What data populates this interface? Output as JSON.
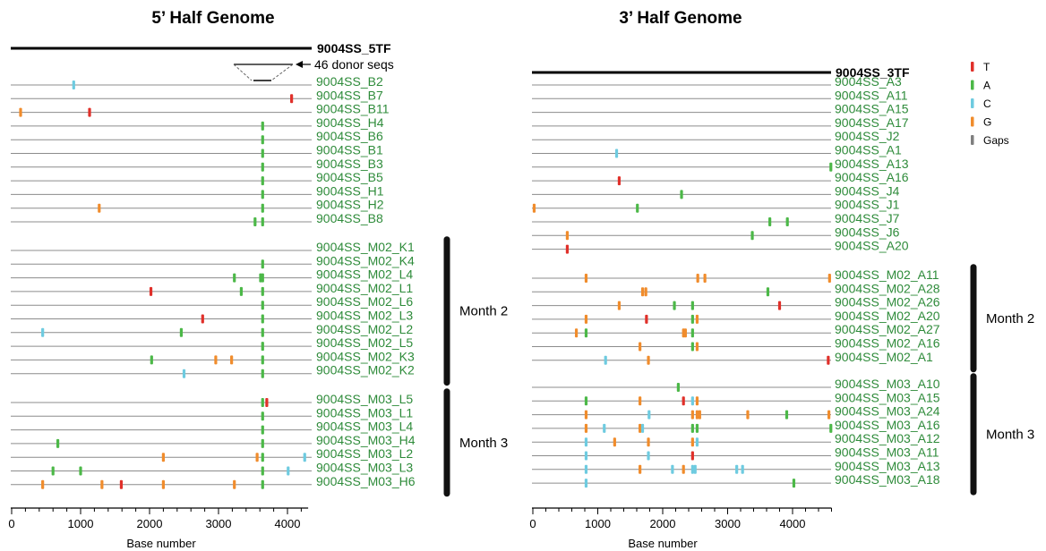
{
  "chart_data": [
    {
      "type": "scatter",
      "title": "5’ Half Genome",
      "xlabel": "Base number",
      "xlim": [
        0,
        4300
      ],
      "xticks": [
        0,
        1000,
        2000,
        3000,
        4000
      ],
      "reference": "9004SS_5TF",
      "annotation": "46 donor seqs",
      "groups": [
        {
          "label": "",
          "rows": [
            {
              "name": "9004SS_B2",
              "marks": [
                {
                  "x": 900,
                  "base": "C"
                }
              ]
            },
            {
              "name": "9004SS_B7",
              "marks": [
                {
                  "x": 4060,
                  "base": "T"
                }
              ]
            },
            {
              "name": "9004SS_B11",
              "marks": [
                {
                  "x": 130,
                  "base": "G"
                },
                {
                  "x": 1130,
                  "base": "T"
                }
              ]
            },
            {
              "name": "9004SS_H4",
              "marks": [
                {
                  "x": 3640,
                  "base": "A"
                }
              ]
            },
            {
              "name": "9004SS_B6",
              "marks": [
                {
                  "x": 3640,
                  "base": "A"
                }
              ]
            },
            {
              "name": "9004SS_B1",
              "marks": [
                {
                  "x": 3640,
                  "base": "A"
                }
              ]
            },
            {
              "name": "9004SS_B3",
              "marks": [
                {
                  "x": 3640,
                  "base": "A"
                }
              ]
            },
            {
              "name": "9004SS_B5",
              "marks": [
                {
                  "x": 3640,
                  "base": "A"
                }
              ]
            },
            {
              "name": "9004SS_H1",
              "marks": [
                {
                  "x": 3640,
                  "base": "A"
                }
              ]
            },
            {
              "name": "9004SS_H2",
              "marks": [
                {
                  "x": 1270,
                  "base": "G"
                },
                {
                  "x": 3640,
                  "base": "A"
                }
              ]
            },
            {
              "name": "9004SS_B8",
              "marks": [
                {
                  "x": 3530,
                  "base": "A"
                },
                {
                  "x": 3640,
                  "base": "A"
                }
              ]
            }
          ]
        },
        {
          "label": "Month 2",
          "rows": [
            {
              "name": "9004SS_M02_K1",
              "marks": []
            },
            {
              "name": "9004SS_M02_K4",
              "marks": [
                {
                  "x": 3640,
                  "base": "A"
                }
              ]
            },
            {
              "name": "9004SS_M02_L4",
              "marks": [
                {
                  "x": 3230,
                  "base": "A"
                },
                {
                  "x": 3610,
                  "base": "A"
                },
                {
                  "x": 3640,
                  "base": "A"
                }
              ]
            },
            {
              "name": "9004SS_M02_L1",
              "marks": [
                {
                  "x": 2020,
                  "base": "T"
                },
                {
                  "x": 3330,
                  "base": "A"
                },
                {
                  "x": 3640,
                  "base": "A"
                }
              ]
            },
            {
              "name": "9004SS_M02_L6",
              "marks": [
                {
                  "x": 3640,
                  "base": "A"
                }
              ]
            },
            {
              "name": "9004SS_M02_L3",
              "marks": [
                {
                  "x": 2770,
                  "base": "T"
                },
                {
                  "x": 3640,
                  "base": "A"
                }
              ]
            },
            {
              "name": "9004SS_M02_L2",
              "marks": [
                {
                  "x": 450,
                  "base": "C"
                },
                {
                  "x": 2460,
                  "base": "A"
                },
                {
                  "x": 3640,
                  "base": "A"
                }
              ]
            },
            {
              "name": "9004SS_M02_L5",
              "marks": [
                {
                  "x": 3640,
                  "base": "A"
                }
              ]
            },
            {
              "name": "9004SS_M02_K3",
              "marks": [
                {
                  "x": 2030,
                  "base": "A"
                },
                {
                  "x": 2960,
                  "base": "G"
                },
                {
                  "x": 3190,
                  "base": "G"
                },
                {
                  "x": 3640,
                  "base": "A"
                }
              ]
            },
            {
              "name": "9004SS_M02_K2",
              "marks": [
                {
                  "x": 2500,
                  "base": "C"
                },
                {
                  "x": 3640,
                  "base": "A"
                }
              ]
            }
          ]
        },
        {
          "label": "Month 3",
          "rows": [
            {
              "name": "9004SS_M03_L5",
              "marks": [
                {
                  "x": 3640,
                  "base": "A"
                },
                {
                  "x": 3700,
                  "base": "T"
                }
              ]
            },
            {
              "name": "9004SS_M03_L1",
              "marks": [
                {
                  "x": 3640,
                  "base": "A"
                }
              ]
            },
            {
              "name": "9004SS_M03_L4",
              "marks": [
                {
                  "x": 3640,
                  "base": "A"
                }
              ]
            },
            {
              "name": "9004SS_M03_H4",
              "marks": [
                {
                  "x": 670,
                  "base": "A"
                },
                {
                  "x": 3640,
                  "base": "A"
                }
              ]
            },
            {
              "name": "9004SS_M03_L2",
              "marks": [
                {
                  "x": 2200,
                  "base": "G"
                },
                {
                  "x": 3560,
                  "base": "G"
                },
                {
                  "x": 3640,
                  "base": "A"
                },
                {
                  "x": 4250,
                  "base": "C"
                }
              ]
            },
            {
              "name": "9004SS_M03_L3",
              "marks": [
                {
                  "x": 600,
                  "base": "A"
                },
                {
                  "x": 1000,
                  "base": "A"
                },
                {
                  "x": 3640,
                  "base": "A"
                },
                {
                  "x": 4010,
                  "base": "C"
                }
              ]
            },
            {
              "name": "9004SS_M03_H6",
              "marks": [
                {
                  "x": 450,
                  "base": "G"
                },
                {
                  "x": 1310,
                  "base": "G"
                },
                {
                  "x": 1590,
                  "base": "T"
                },
                {
                  "x": 2200,
                  "base": "G"
                },
                {
                  "x": 3230,
                  "base": "G"
                },
                {
                  "x": 3640,
                  "base": "A"
                }
              ]
            }
          ]
        }
      ]
    },
    {
      "type": "scatter",
      "title": "3’ Half Genome",
      "xlabel": "Base number",
      "xlim": [
        0,
        4600
      ],
      "xticks": [
        0,
        1000,
        2000,
        3000,
        4000
      ],
      "reference": "9004SS_3TF",
      "groups": [
        {
          "label": "",
          "rows": [
            {
              "name": "9004SS_A3",
              "marks": []
            },
            {
              "name": "9004SS_A11",
              "marks": []
            },
            {
              "name": "9004SS_A15",
              "marks": []
            },
            {
              "name": "9004SS_A17",
              "marks": []
            },
            {
              "name": "9004SS_J2",
              "marks": []
            },
            {
              "name": "9004SS_A1",
              "marks": [
                {
                  "x": 1290,
                  "base": "C"
                }
              ]
            },
            {
              "name": "9004SS_A13",
              "marks": [
                {
                  "x": 4590,
                  "base": "A"
                }
              ]
            },
            {
              "name": "9004SS_A16",
              "marks": [
                {
                  "x": 1330,
                  "base": "T"
                }
              ]
            },
            {
              "name": "9004SS_J4",
              "marks": [
                {
                  "x": 2290,
                  "base": "A"
                }
              ]
            },
            {
              "name": "9004SS_J1",
              "marks": [
                {
                  "x": 20,
                  "base": "G"
                },
                {
                  "x": 1610,
                  "base": "A"
                }
              ]
            },
            {
              "name": "9004SS_J7",
              "marks": [
                {
                  "x": 3650,
                  "base": "A"
                },
                {
                  "x": 3920,
                  "base": "A"
                }
              ]
            },
            {
              "name": "9004SS_J6",
              "marks": [
                {
                  "x": 530,
                  "base": "G"
                },
                {
                  "x": 3380,
                  "base": "A"
                }
              ]
            },
            {
              "name": "9004SS_A20",
              "marks": [
                {
                  "x": 530,
                  "base": "T"
                }
              ]
            }
          ]
        },
        {
          "label": "Month 2",
          "rows": [
            {
              "name": "9004SS_M02_A11",
              "marks": [
                {
                  "x": 820,
                  "base": "G"
                },
                {
                  "x": 2540,
                  "base": "G"
                },
                {
                  "x": 2650,
                  "base": "G"
                },
                {
                  "x": 4570,
                  "base": "G"
                }
              ]
            },
            {
              "name": "9004SS_M02_A28",
              "marks": [
                {
                  "x": 1690,
                  "base": "G"
                },
                {
                  "x": 1740,
                  "base": "G"
                },
                {
                  "x": 3620,
                  "base": "A"
                }
              ]
            },
            {
              "name": "9004SS_M02_A26",
              "marks": [
                {
                  "x": 1330,
                  "base": "G"
                },
                {
                  "x": 2180,
                  "base": "A"
                },
                {
                  "x": 2460,
                  "base": "A"
                },
                {
                  "x": 3800,
                  "base": "T"
                }
              ]
            },
            {
              "name": "9004SS_M02_A20",
              "marks": [
                {
                  "x": 820,
                  "base": "G"
                },
                {
                  "x": 1750,
                  "base": "T"
                },
                {
                  "x": 2460,
                  "base": "A"
                },
                {
                  "x": 2530,
                  "base": "G"
                }
              ]
            },
            {
              "name": "9004SS_M02_A27",
              "marks": [
                {
                  "x": 670,
                  "base": "G"
                },
                {
                  "x": 820,
                  "base": "A"
                },
                {
                  "x": 2320,
                  "base": "G"
                },
                {
                  "x": 2350,
                  "base": "G"
                },
                {
                  "x": 2460,
                  "base": "A"
                }
              ]
            },
            {
              "name": "9004SS_M02_A16",
              "marks": [
                {
                  "x": 1650,
                  "base": "G"
                },
                {
                  "x": 2460,
                  "base": "A"
                },
                {
                  "x": 2530,
                  "base": "G"
                }
              ]
            },
            {
              "name": "9004SS_M02_A1",
              "marks": [
                {
                  "x": 1120,
                  "base": "C"
                },
                {
                  "x": 1780,
                  "base": "G"
                },
                {
                  "x": 4550,
                  "base": "T"
                }
              ]
            }
          ]
        },
        {
          "label": "Month 3",
          "rows": [
            {
              "name": "9004SS_M03_A10",
              "marks": [
                {
                  "x": 2240,
                  "base": "A"
                }
              ]
            },
            {
              "name": "9004SS_M03_A15",
              "marks": [
                {
                  "x": 820,
                  "base": "A"
                },
                {
                  "x": 1650,
                  "base": "G"
                },
                {
                  "x": 2320,
                  "base": "T"
                },
                {
                  "x": 2460,
                  "base": "C"
                },
                {
                  "x": 2530,
                  "base": "G"
                }
              ]
            },
            {
              "name": "9004SS_M03_A24",
              "marks": [
                {
                  "x": 820,
                  "base": "G"
                },
                {
                  "x": 1790,
                  "base": "C"
                },
                {
                  "x": 2460,
                  "base": "G"
                },
                {
                  "x": 2530,
                  "base": "G"
                },
                {
                  "x": 2570,
                  "base": "G"
                },
                {
                  "x": 3310,
                  "base": "G"
                },
                {
                  "x": 3910,
                  "base": "A"
                },
                {
                  "x": 4560,
                  "base": "G"
                }
              ]
            },
            {
              "name": "9004SS_M03_A16",
              "marks": [
                {
                  "x": 820,
                  "base": "G"
                },
                {
                  "x": 1100,
                  "base": "C"
                },
                {
                  "x": 1650,
                  "base": "G"
                },
                {
                  "x": 1690,
                  "base": "C"
                },
                {
                  "x": 2460,
                  "base": "A"
                },
                {
                  "x": 2530,
                  "base": "A"
                },
                {
                  "x": 4590,
                  "base": "A"
                }
              ]
            },
            {
              "name": "9004SS_M03_A12",
              "marks": [
                {
                  "x": 820,
                  "base": "C"
                },
                {
                  "x": 1260,
                  "base": "G"
                },
                {
                  "x": 1780,
                  "base": "G"
                },
                {
                  "x": 2460,
                  "base": "G"
                },
                {
                  "x": 2530,
                  "base": "C"
                }
              ]
            },
            {
              "name": "9004SS_M03_A11",
              "marks": [
                {
                  "x": 820,
                  "base": "C"
                },
                {
                  "x": 1780,
                  "base": "C"
                },
                {
                  "x": 2460,
                  "base": "T"
                }
              ]
            },
            {
              "name": "9004SS_M03_A13",
              "marks": [
                {
                  "x": 820,
                  "base": "C"
                },
                {
                  "x": 1650,
                  "base": "G"
                },
                {
                  "x": 2150,
                  "base": "C"
                },
                {
                  "x": 2320,
                  "base": "G"
                },
                {
                  "x": 2460,
                  "base": "C"
                },
                {
                  "x": 2500,
                  "base": "C"
                },
                {
                  "x": 3140,
                  "base": "C"
                },
                {
                  "x": 3230,
                  "base": "C"
                }
              ]
            },
            {
              "name": "9004SS_M03_A18",
              "marks": [
                {
                  "x": 820,
                  "base": "C"
                },
                {
                  "x": 4020,
                  "base": "A"
                }
              ]
            }
          ]
        }
      ]
    }
  ],
  "legend": [
    {
      "base": "T",
      "label": "T",
      "color": "#e0302a"
    },
    {
      "base": "A",
      "label": "A",
      "color": "#4cb848"
    },
    {
      "base": "C",
      "label": "C",
      "color": "#6ecbe0"
    },
    {
      "base": "G",
      "label": "G",
      "color": "#f08c2c"
    },
    {
      "base": "Gaps",
      "label": "Gaps",
      "color": "#7f7f7f"
    }
  ]
}
